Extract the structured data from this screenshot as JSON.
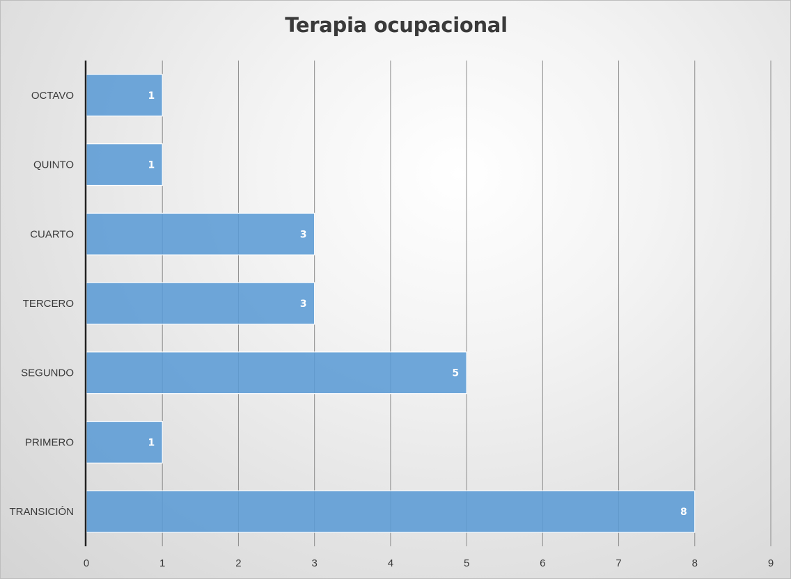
{
  "chart_data": {
    "type": "bar",
    "orientation": "horizontal",
    "title": "Terapia ocupacional",
    "categories": [
      "TRANSICIÓN",
      "PRIMERO",
      "SEGUNDO",
      "TERCERO",
      "CUARTO",
      "QUINTO",
      "OCTAVO"
    ],
    "values": [
      8,
      1,
      5,
      3,
      3,
      1,
      1
    ],
    "xlim": [
      0,
      9
    ],
    "xticks": [
      0,
      1,
      2,
      3,
      4,
      5,
      6,
      7,
      8,
      9
    ],
    "grid": true,
    "data_labels": true,
    "bar_color": "#5b9bd5",
    "legend": "none"
  }
}
